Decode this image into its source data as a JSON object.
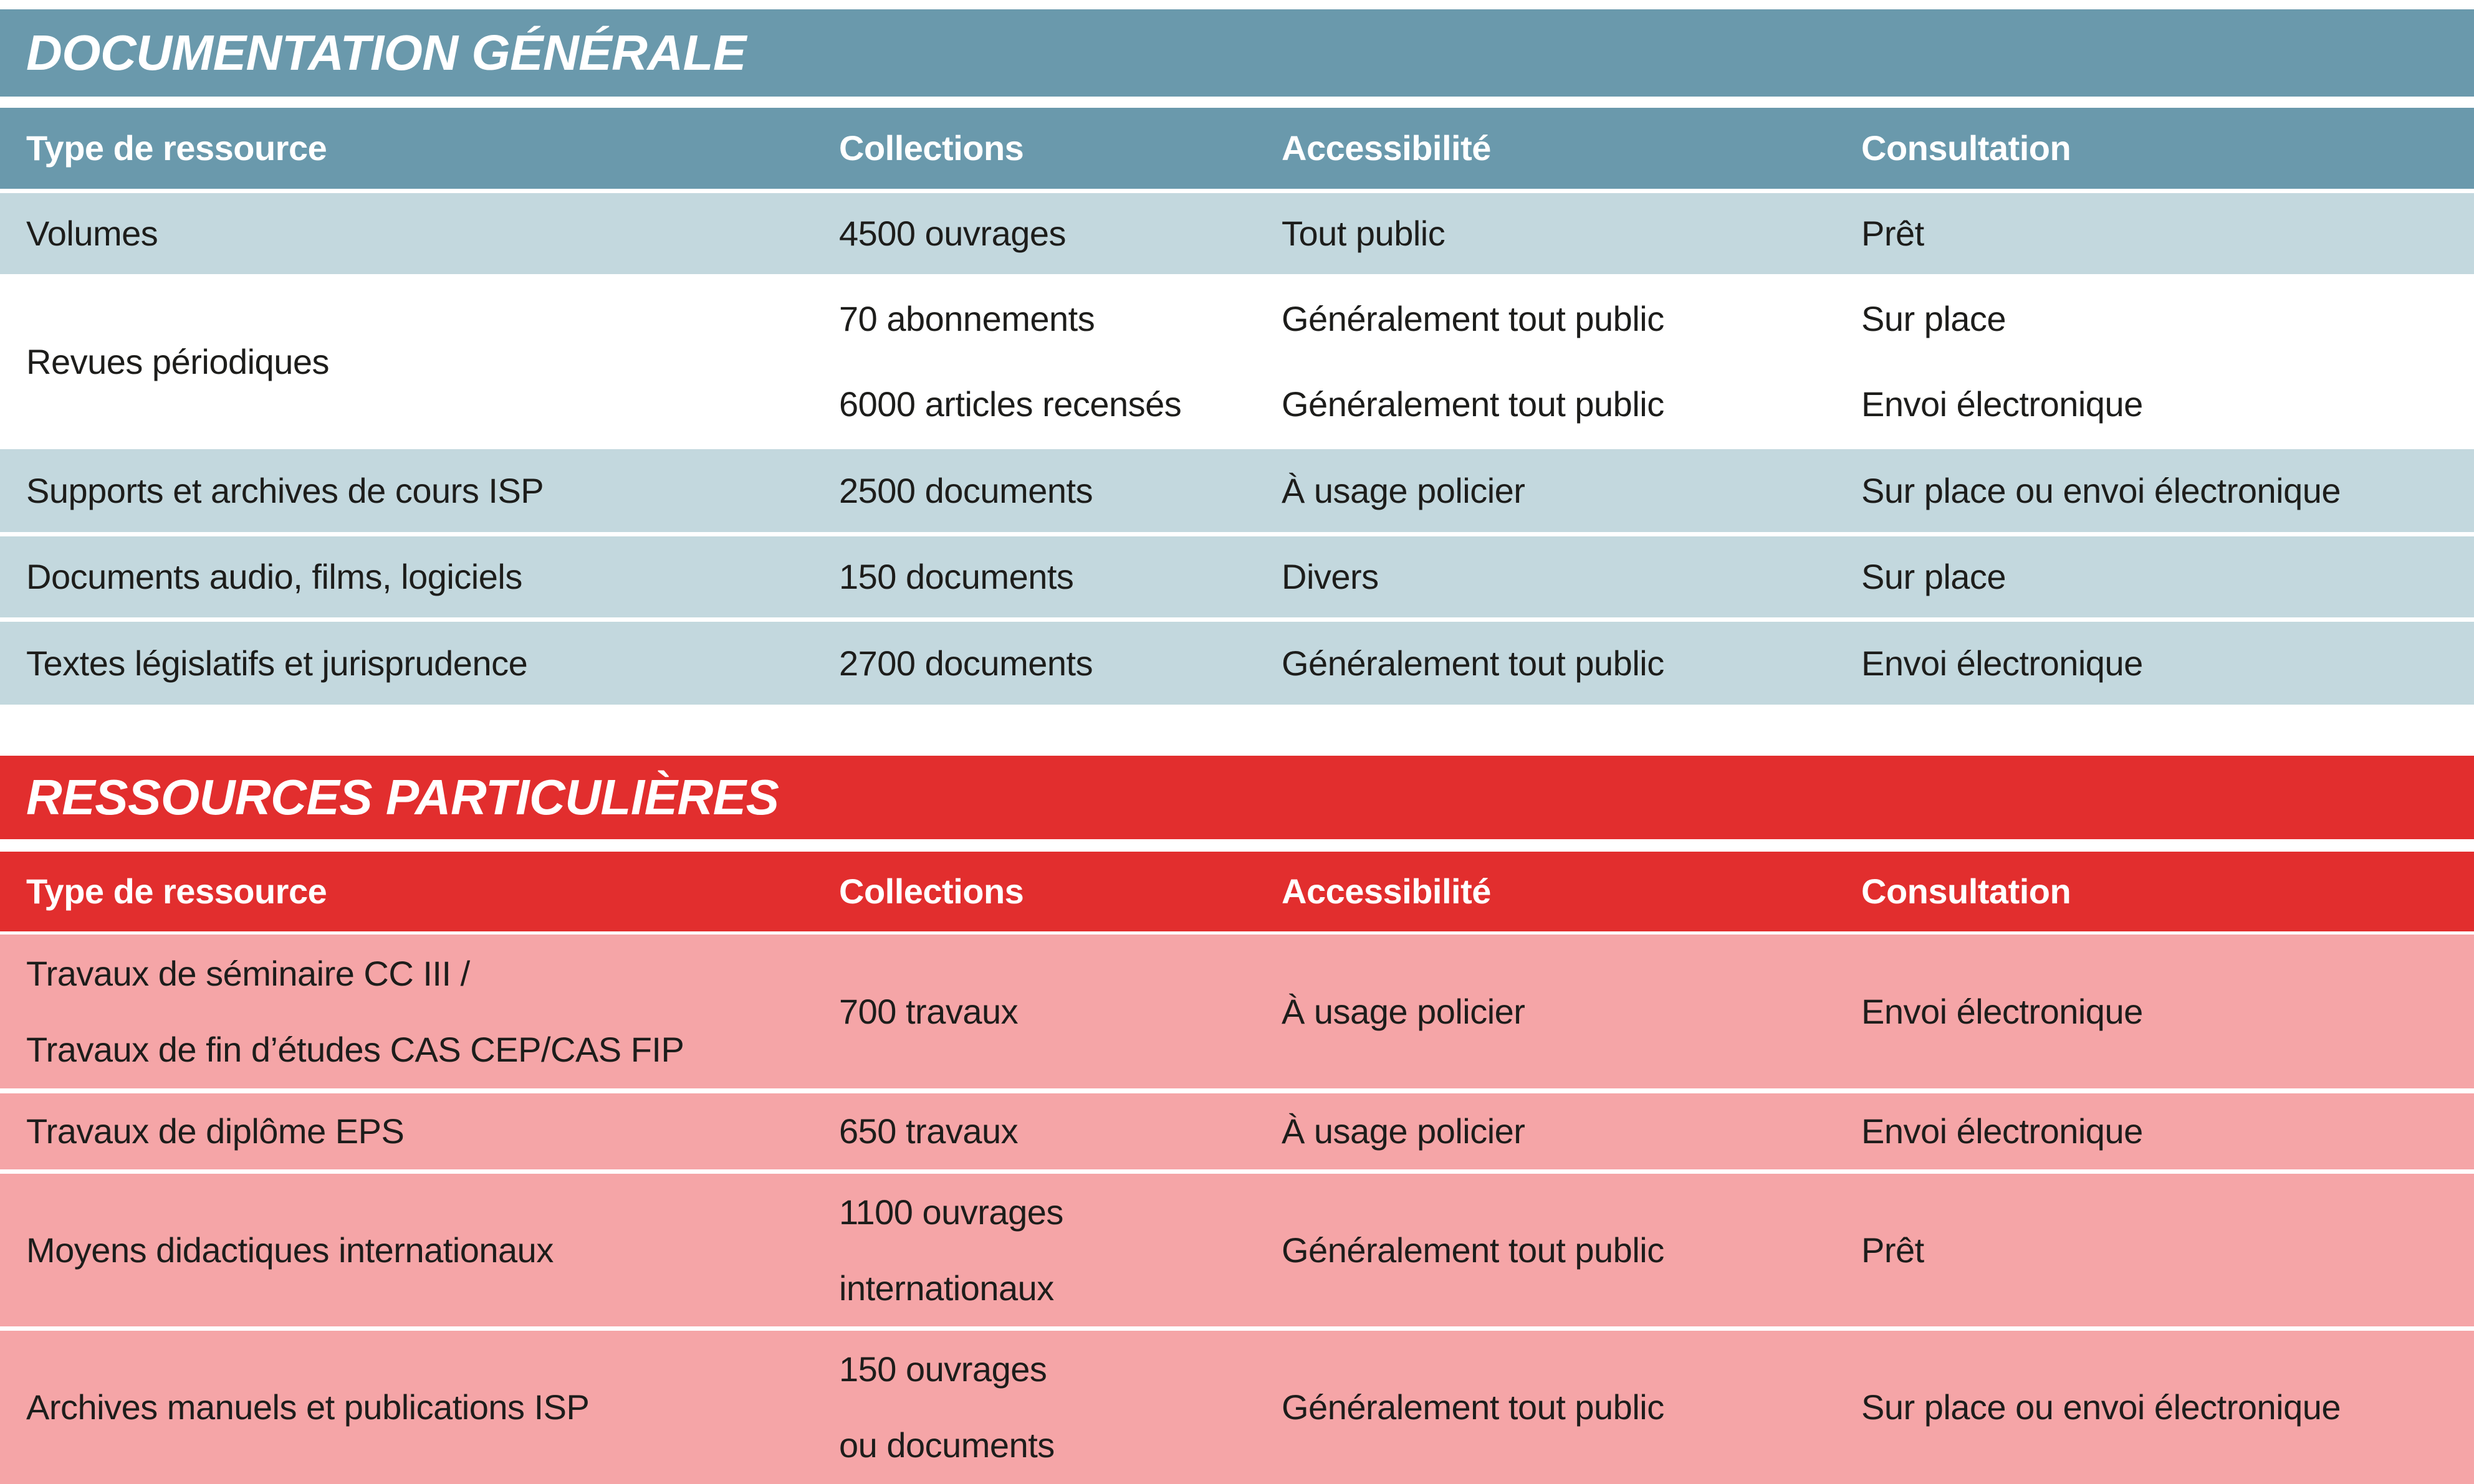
{
  "colors": {
    "blue": "#6a99ac",
    "rowblue": "#c3d8de",
    "red": "#e22e2e",
    "rowpink": "#f5a5a7",
    "text": "#1d1d1b"
  },
  "tables": [
    {
      "title": "DOCUMENTATION GÉNÉRALE",
      "columns": [
        "Type de ressource",
        "Collections",
        "Accessibilité",
        "Consultation"
      ],
      "rows": [
        {
          "type": "Volumes",
          "collections": "4500 ouvrages",
          "access": "Tout public",
          "consult": "Prêt"
        },
        {
          "type": "Revues périodiques",
          "sub": [
            {
              "collections": "70 abonnements",
              "access": "Généralement tout public",
              "consult": "Sur place"
            },
            {
              "collections": "6000 articles recensés",
              "access": "Généralement tout public",
              "consult": "Envoi électronique"
            }
          ]
        },
        {
          "type": "Supports et archives de cours ISP",
          "collections": "2500 documents",
          "access": "À usage policier",
          "consult": "Sur place ou envoi électronique"
        },
        {
          "type": "Documents audio, films, logiciels",
          "collections": "150 documents",
          "access": "Divers",
          "consult": "Sur place"
        },
        {
          "type": "Textes législatifs et jurisprudence",
          "collections": "2700 documents",
          "access": "Généralement tout public",
          "consult": "Envoi électronique"
        }
      ]
    },
    {
      "title": "RESSOURCES PARTICULIÈRES",
      "columns": [
        "Type de ressource",
        "Collections",
        "Accessibilité",
        "Consultation"
      ],
      "rows": [
        {
          "type": "Travaux de séminaire CC III /\nTravaux de fin d’études CAS CEP/CAS FIP",
          "collections": "700 travaux",
          "access": "À usage policier",
          "consult": "Envoi électronique"
        },
        {
          "type": "Travaux de diplôme EPS",
          "collections": "650 travaux",
          "access": "À usage policier",
          "consult": "Envoi électronique"
        },
        {
          "type": "Moyens didactiques internationaux",
          "collections": "1100 ouvrages\ninternationaux",
          "access": "Généralement tout public",
          "consult": "Prêt"
        },
        {
          "type": "Archives manuels et publications ISP",
          "collections": "150 ouvrages\nou documents",
          "access": "Généralement tout public",
          "consult": "Sur place ou envoi électronique"
        }
      ]
    }
  ]
}
